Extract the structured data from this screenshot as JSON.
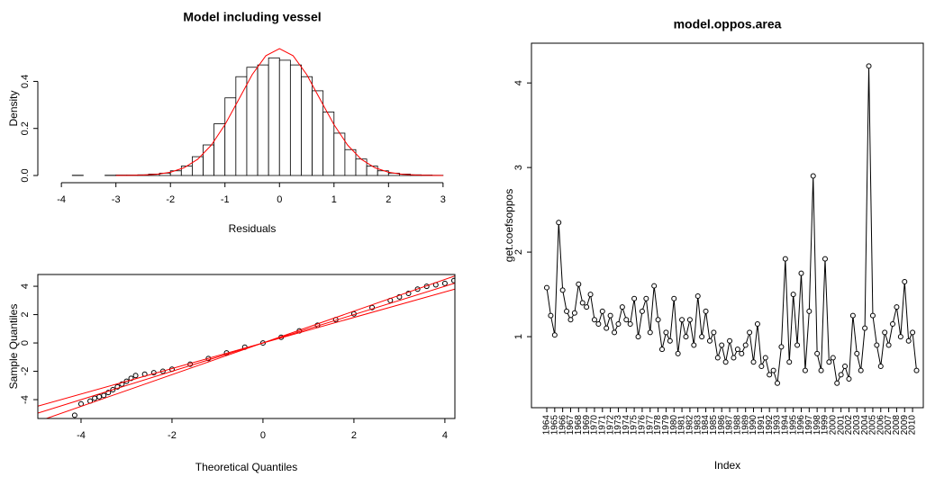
{
  "chart_data": [
    {
      "type": "histogram",
      "title": "Model including vessel",
      "x_label": "Residuals",
      "y_label": "Density",
      "frame": false,
      "bins": [
        -3.8,
        -3.6,
        -3.4,
        -3.2,
        -3.0,
        -2.8,
        -2.6,
        -2.4,
        -2.2,
        -2.0,
        -1.8,
        -1.6,
        -1.4,
        -1.2,
        -1.0,
        -0.8,
        -0.6,
        -0.4,
        -0.2,
        0.0,
        0.2,
        0.4,
        0.6,
        0.8,
        1.0,
        1.2,
        1.4,
        1.6,
        1.8,
        2.0,
        2.2,
        2.4,
        2.6,
        2.8,
        3.0
      ],
      "values": [
        0.001,
        0,
        0,
        0.001,
        0.002,
        0.002,
        0.003,
        0.006,
        0.01,
        0.02,
        0.04,
        0.08,
        0.13,
        0.22,
        0.33,
        0.42,
        0.46,
        0.47,
        0.5,
        0.49,
        0.47,
        0.42,
        0.36,
        0.27,
        0.18,
        0.11,
        0.07,
        0.04,
        0.02,
        0.01,
        0.006,
        0.003,
        0.002,
        0.001
      ],
      "color": "#ffffff",
      "edge_color": "#000000",
      "density_curve": {
        "color": "#ff0000",
        "x": [
          -3,
          -2.75,
          -2.5,
          -2.25,
          -2,
          -1.75,
          -1.5,
          -1.25,
          -1,
          -0.75,
          -0.5,
          -0.25,
          0,
          0.25,
          0.5,
          0.75,
          1,
          1.25,
          1.5,
          1.75,
          2,
          2.25,
          2.5,
          2.75,
          3
        ],
        "values": [
          0.0001,
          0.0005,
          0.0018,
          0.0053,
          0.014,
          0.033,
          0.069,
          0.129,
          0.216,
          0.322,
          0.429,
          0.509,
          0.539,
          0.509,
          0.429,
          0.322,
          0.216,
          0.129,
          0.069,
          0.033,
          0.014,
          0.0053,
          0.0018,
          0.0005,
          0.0001
        ]
      },
      "xlim": [
        -4.3,
        3.3
      ],
      "ylim": [
        0,
        0.57
      ],
      "xticks": [
        -4,
        -3,
        -2,
        -1,
        0,
        1,
        2,
        3
      ],
      "yticks": [
        {
          "value": 0,
          "label": "0.0"
        },
        0.2,
        0.4
      ]
    },
    {
      "type": "scatter",
      "x_label": "Theoretical Quantiles",
      "y_label": "Sample Quantiles",
      "frame": true,
      "color": "#000000",
      "x": [
        -4.14,
        -4.0,
        -3.8,
        -3.7,
        -3.6,
        -3.5,
        -3.4,
        -3.3,
        -3.2,
        -3.1,
        -3.0,
        -2.9,
        -2.8,
        -2.6,
        -2.4,
        -2.2,
        -2.0,
        -1.6,
        -1.2,
        -0.8,
        -0.4,
        0,
        0.4,
        0.8,
        1.2,
        1.6,
        2.0,
        2.4,
        2.8,
        3.0,
        3.2,
        3.4,
        3.6,
        3.8,
        4.0,
        4.2
      ],
      "values": [
        -5.1,
        -4.3,
        -4.1,
        -3.9,
        -3.8,
        -3.7,
        -3.5,
        -3.3,
        -3.1,
        -2.9,
        -2.7,
        -2.5,
        -2.3,
        -2.2,
        -2.1,
        -2.0,
        -1.85,
        -1.5,
        -1.1,
        -0.7,
        -0.3,
        0,
        0.4,
        0.85,
        1.25,
        1.65,
        2.05,
        2.5,
        3.0,
        3.25,
        3.5,
        3.8,
        4.0,
        4.1,
        4.2,
        4.4
      ],
      "reference_lines": [
        {
          "color": "#ff0000",
          "x": [
            -4.95,
            4.22
          ],
          "values": [
            -5.54,
            4.73
          ]
        },
        {
          "color": "#ff0000",
          "x": [
            -4.95,
            4.22
          ],
          "values": [
            -4.46,
            3.8
          ]
        },
        {
          "color": "#ff0000",
          "x": [
            -4.95,
            4.22
          ],
          "values": [
            -4.95,
            4.22
          ]
        }
      ],
      "xlim": [
        -4.95,
        4.22
      ],
      "ylim": [
        -5.33,
        4.83
      ],
      "xticks": [
        -4,
        -2,
        0,
        2,
        4
      ],
      "yticks": [
        -4,
        -2,
        0,
        2,
        4
      ]
    },
    {
      "type": "line",
      "title": "model.oppos.area",
      "x_label": "Index",
      "y_label": "get.coefsoppos",
      "frame": true,
      "color": "#000000",
      "values": [
        1.58,
        1.25,
        1.02,
        2.35,
        1.55,
        1.3,
        1.2,
        1.28,
        1.62,
        1.4,
        1.35,
        1.5,
        1.2,
        1.15,
        1.3,
        1.1,
        1.25,
        1.05,
        1.15,
        1.35,
        1.2,
        1.15,
        1.45,
        1.0,
        1.3,
        1.45,
        1.05,
        1.6,
        1.2,
        0.85,
        1.05,
        0.95,
        1.45,
        0.8,
        1.2,
        1.0,
        1.2,
        0.9,
        1.48,
        1.0,
        1.3,
        0.95,
        1.05,
        0.75,
        0.9,
        0.7,
        0.95,
        0.75,
        0.85,
        0.8,
        0.9,
        1.05,
        0.7,
        1.15,
        0.65,
        0.75,
        0.55,
        0.6,
        0.45,
        0.88,
        1.92,
        0.7,
        1.5,
        0.9,
        1.75,
        0.6,
        1.3,
        2.9,
        0.8,
        0.6,
        1.92,
        0.7,
        0.75,
        0.45,
        0.55,
        0.65,
        0.5,
        1.25,
        0.8,
        0.6,
        1.1,
        4.2,
        1.25,
        0.9,
        0.65,
        1.05,
        0.9,
        1.15,
        1.35,
        1.0,
        1.65,
        0.95,
        1.05,
        0.6
      ],
      "xlim": [
        -2.85,
        95.7
      ],
      "ylim": [
        0.16,
        4.47
      ],
      "xticks": [
        {
          "value": 1,
          "label": "1964"
        },
        {
          "value": 3,
          "label": "1965"
        },
        {
          "value": 5,
          "label": "1966"
        },
        {
          "value": 7,
          "label": "1967"
        },
        {
          "value": 9,
          "label": "1968"
        },
        {
          "value": 11,
          "label": "1969"
        },
        {
          "value": 13,
          "label": "1970"
        },
        {
          "value": 15,
          "label": "1971"
        },
        {
          "value": 17,
          "label": "1972"
        },
        {
          "value": 19,
          "label": "1973"
        },
        {
          "value": 21,
          "label": "1974"
        },
        {
          "value": 23,
          "label": "1975"
        },
        {
          "value": 25,
          "label": "1976"
        },
        {
          "value": 27,
          "label": "1977"
        },
        {
          "value": 29,
          "label": "1978"
        },
        {
          "value": 31,
          "label": "1979"
        },
        {
          "value": 33,
          "label": "1980"
        },
        {
          "value": 35,
          "label": "1981"
        },
        {
          "value": 37,
          "label": "1982"
        },
        {
          "value": 39,
          "label": "1983"
        },
        {
          "value": 41,
          "label": "1984"
        },
        {
          "value": 43,
          "label": "1985"
        },
        {
          "value": 45,
          "label": "1986"
        },
        {
          "value": 47,
          "label": "1987"
        },
        {
          "value": 49,
          "label": "1988"
        },
        {
          "value": 51,
          "label": "1989"
        },
        {
          "value": 53,
          "label": "1990"
        },
        {
          "value": 55,
          "label": "1991"
        },
        {
          "value": 57,
          "label": "1992"
        },
        {
          "value": 59,
          "label": "1993"
        },
        {
          "value": 61,
          "label": "1994"
        },
        {
          "value": 63,
          "label": "1995"
        },
        {
          "value": 65,
          "label": "1996"
        },
        {
          "value": 67,
          "label": "1997"
        },
        {
          "value": 69,
          "label": "1998"
        },
        {
          "value": 71,
          "label": "1999"
        },
        {
          "value": 73,
          "label": "2000"
        },
        {
          "value": 75,
          "label": "2001"
        },
        {
          "value": 77,
          "label": "2002"
        },
        {
          "value": 79,
          "label": "2003"
        },
        {
          "value": 81,
          "label": "2004"
        },
        {
          "value": 83,
          "label": "2005"
        },
        {
          "value": 85,
          "label": "2006"
        },
        {
          "value": 87,
          "label": "2007"
        },
        {
          "value": 89,
          "label": "2008"
        },
        {
          "value": 91,
          "label": "2009"
        },
        {
          "value": 93,
          "label": "2010"
        }
      ],
      "yticks": [
        1,
        2,
        3,
        4
      ]
    }
  ]
}
